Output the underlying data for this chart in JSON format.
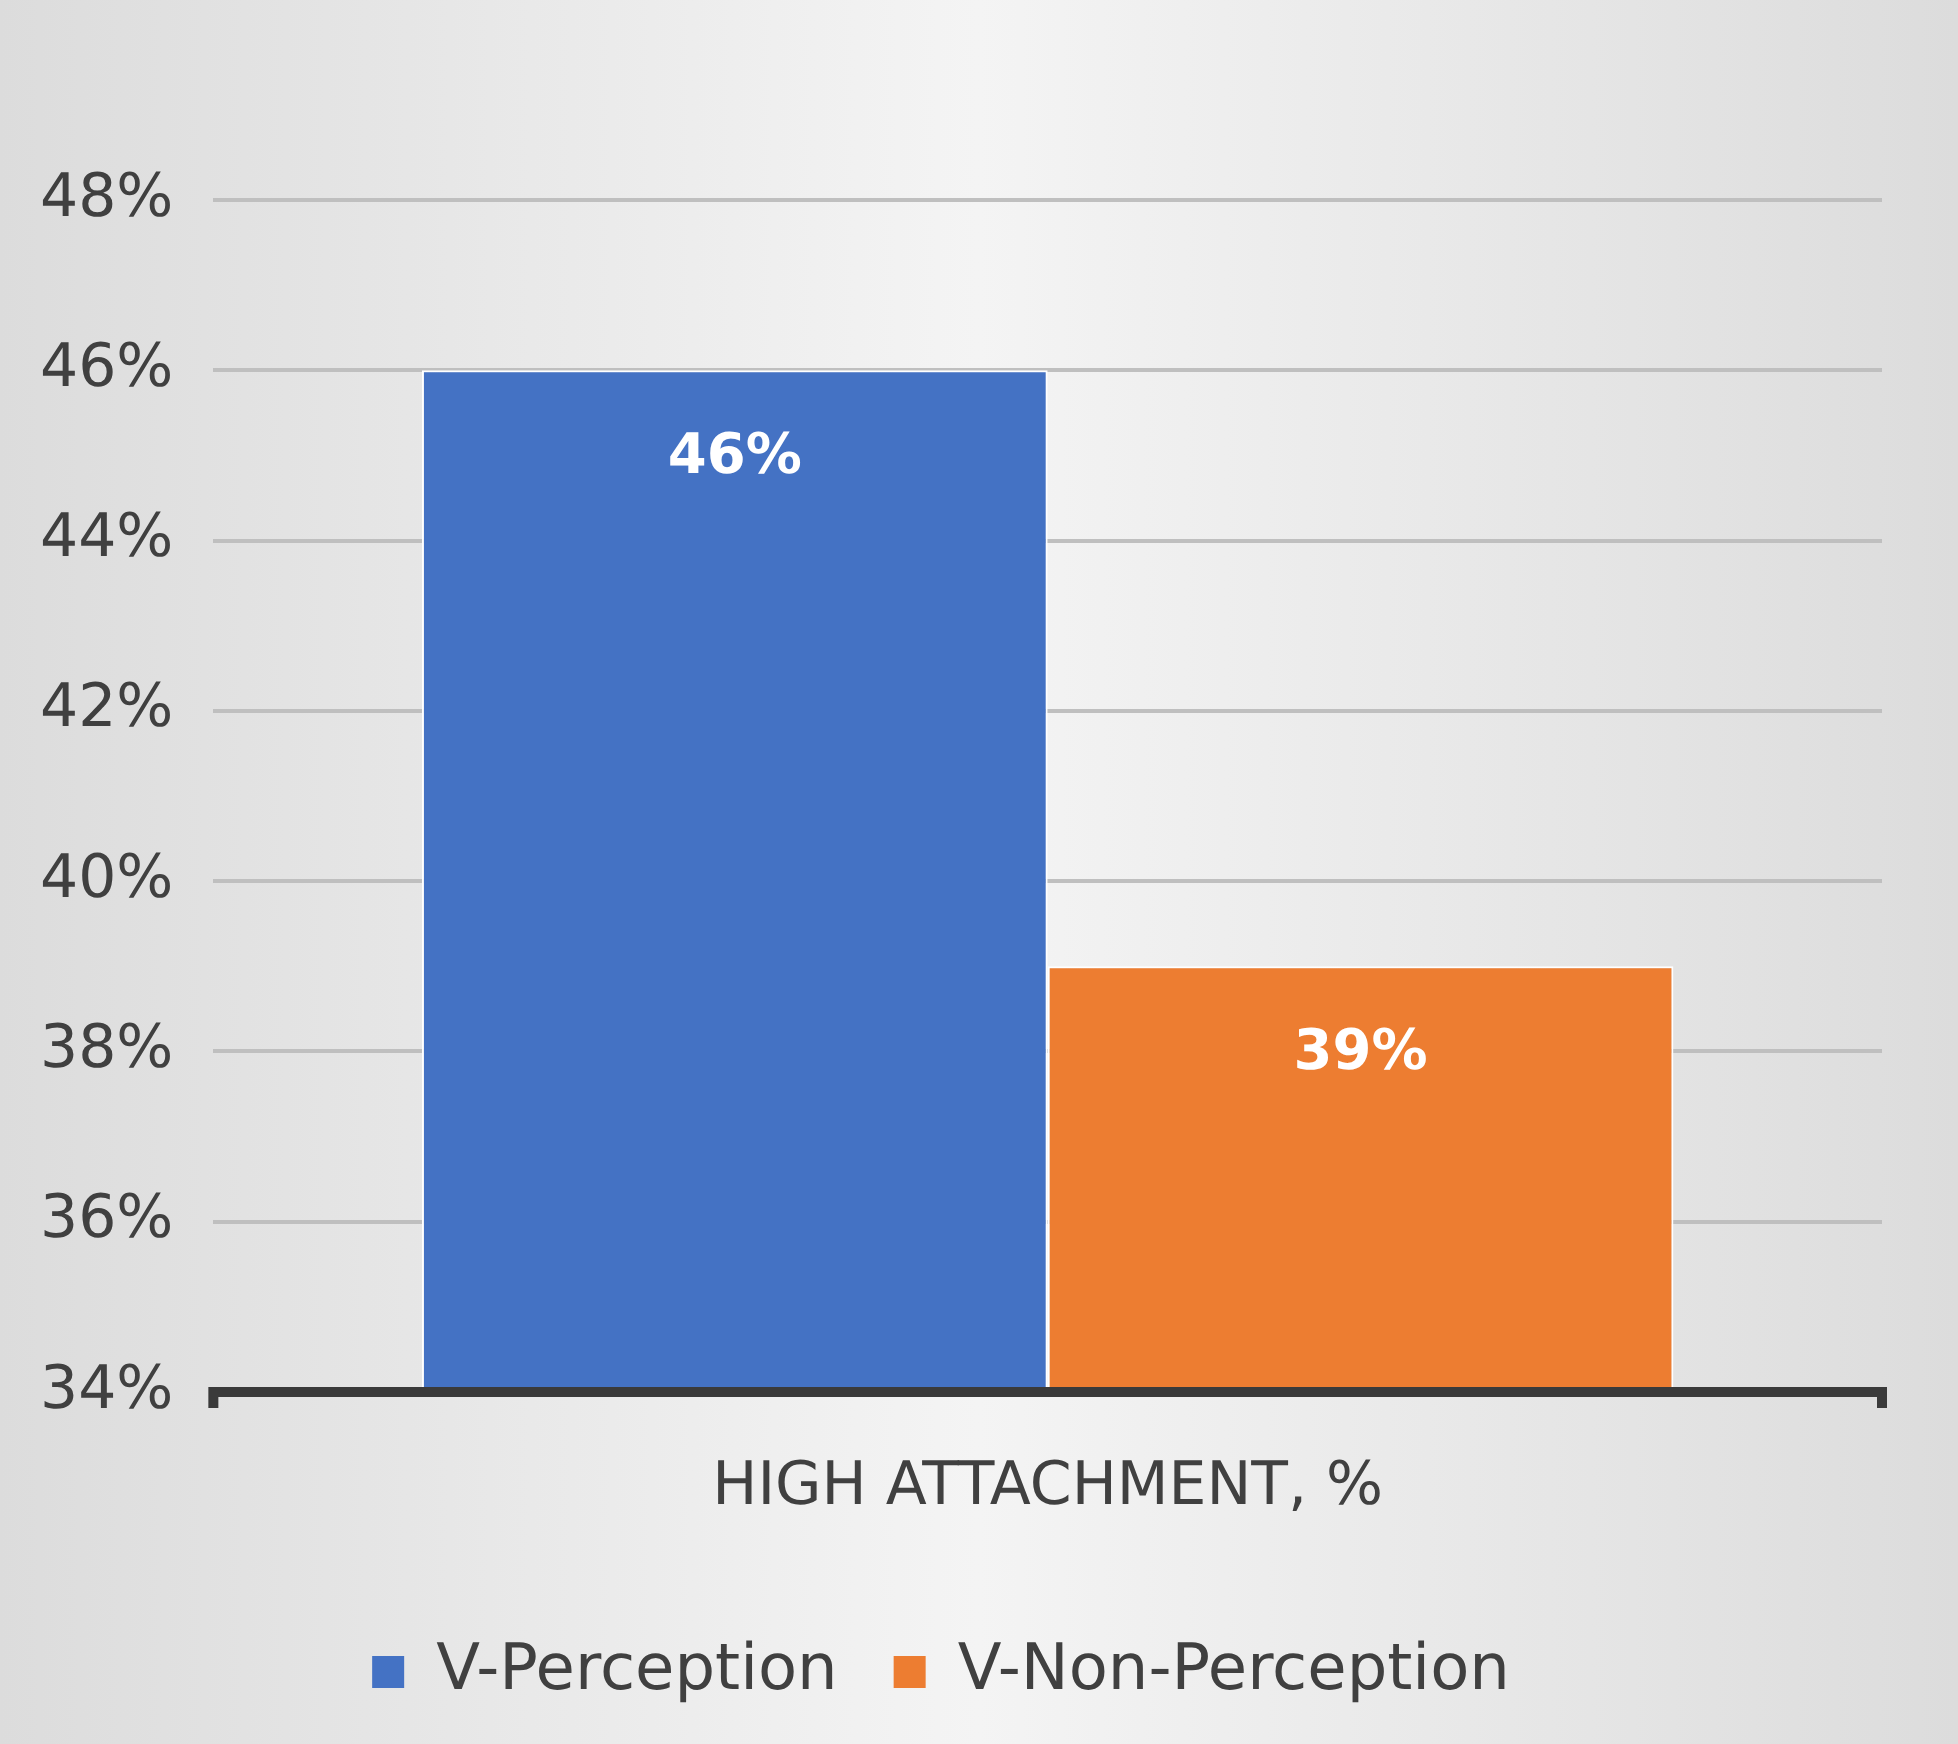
{
  "chart_data": {
    "type": "bar",
    "categories": [
      "HIGH ATTACHMENT, %"
    ],
    "series": [
      {
        "name": "V-Perception",
        "color": "#4472c4",
        "values": [
          46
        ],
        "value_labels": [
          "46%"
        ]
      },
      {
        "name": "V-Non-Perception",
        "color": "#ed7d31",
        "values": [
          39
        ],
        "value_labels": [
          "39%"
        ]
      }
    ],
    "ylim": [
      34,
      48
    ],
    "yticks": [
      {
        "value": 34,
        "label": "34%"
      },
      {
        "value": 36,
        "label": "36%"
      },
      {
        "value": 38,
        "label": "38%"
      },
      {
        "value": 40,
        "label": "40%"
      },
      {
        "value": 42,
        "label": "42%"
      },
      {
        "value": 44,
        "label": "44%"
      },
      {
        "value": 46,
        "label": "46%"
      },
      {
        "value": 48,
        "label": "48%"
      }
    ],
    "grid": "y",
    "legend": "bottom"
  }
}
